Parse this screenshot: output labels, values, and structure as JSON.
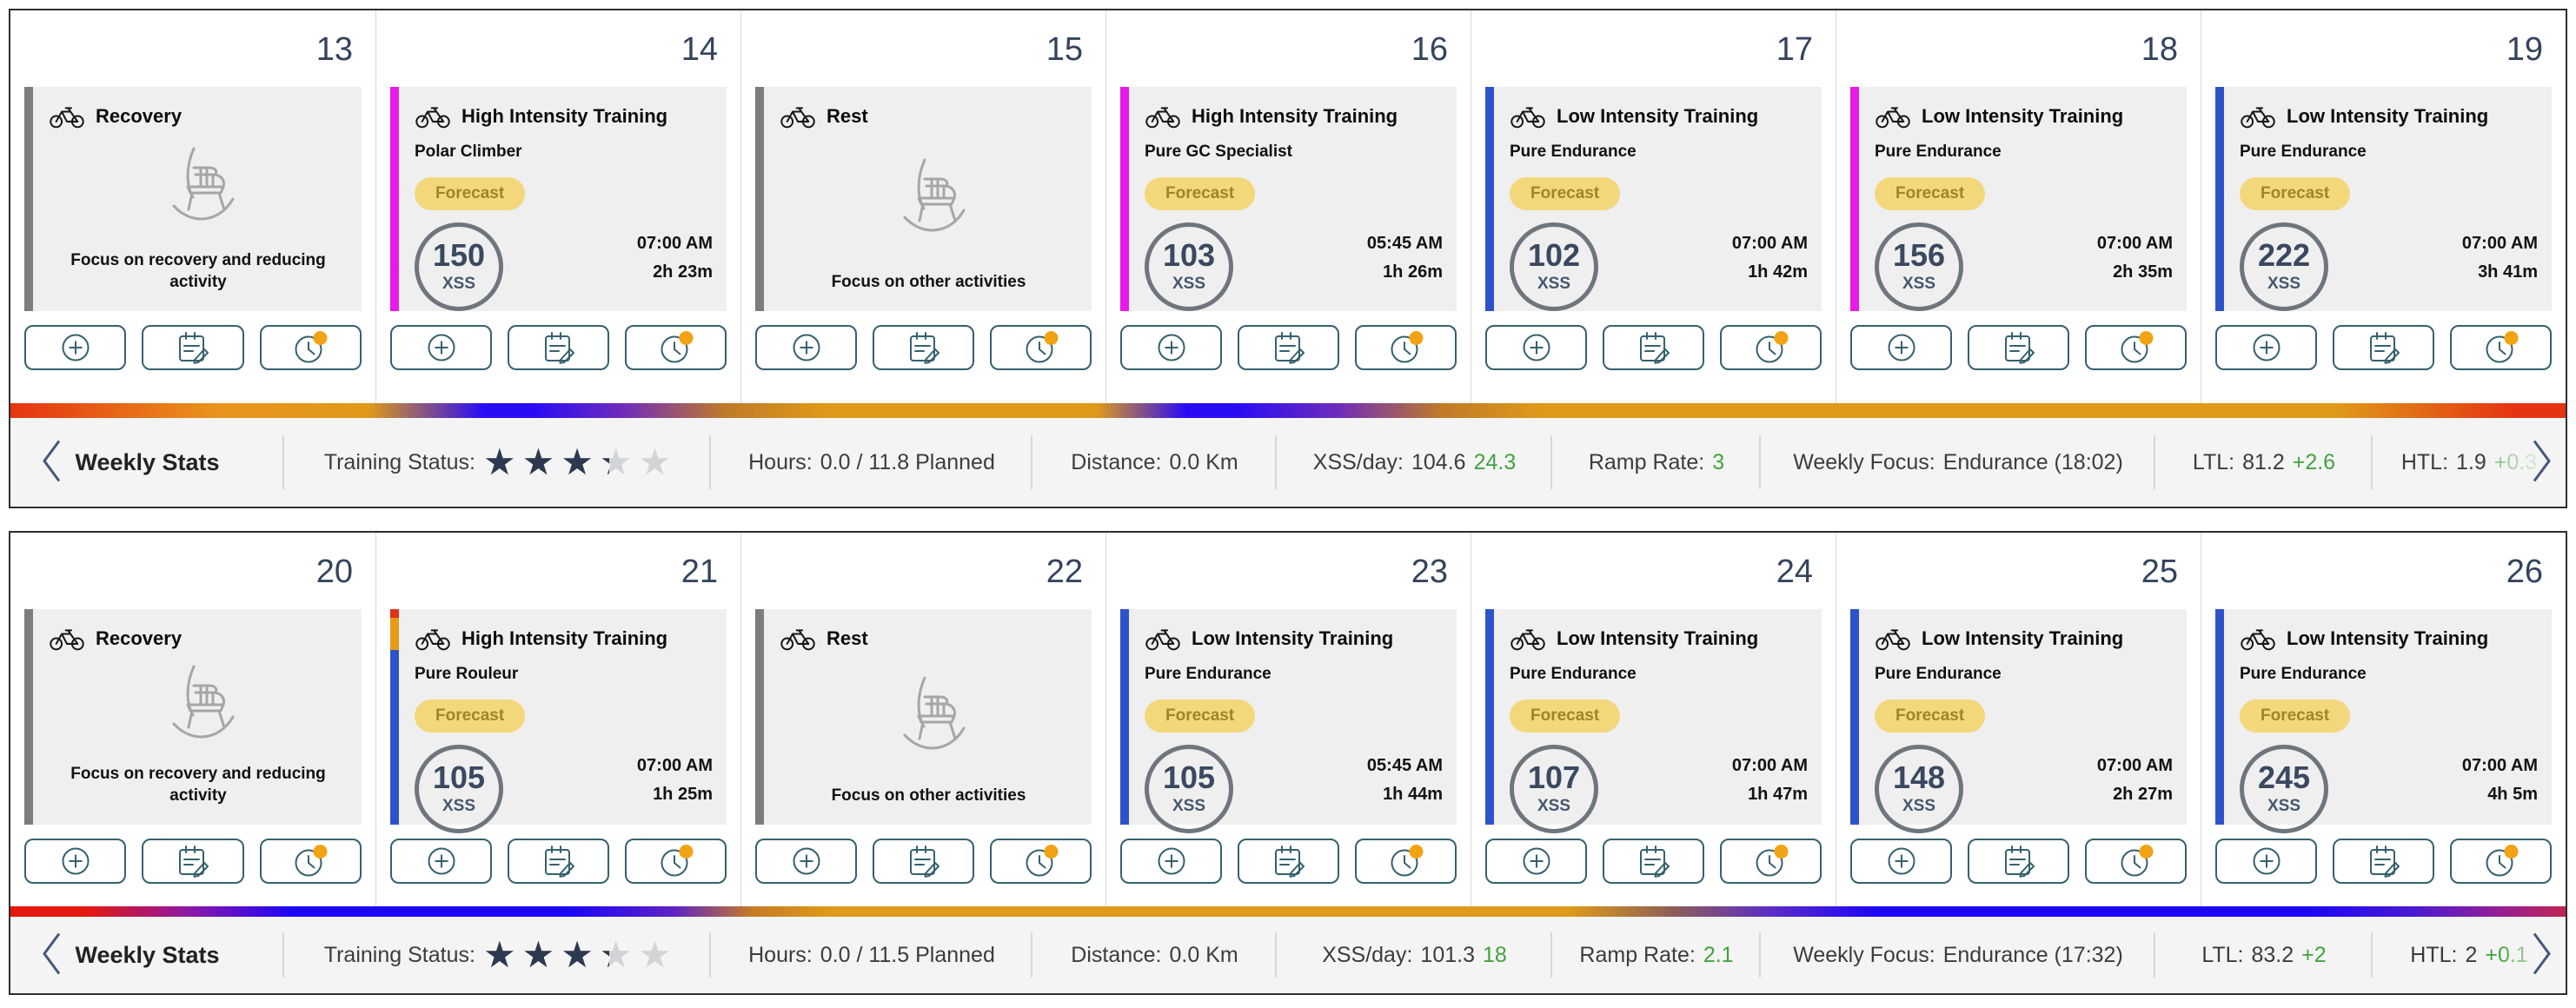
{
  "colors": {
    "green": "#43a23c",
    "star_filled": "#2c3950",
    "star_empty": "#d3d3d8",
    "badge_bg": "#f3d77b",
    "badge_text": "#a2832a",
    "button_border": "#35616e",
    "notification_dot": "#f2a313",
    "accent_gray": "#7d7d7d",
    "accent_magenta": "#e81ae8",
    "accent_blue": "#2d53cb"
  },
  "weeks": [
    {
      "days": [
        {
          "day": "13",
          "kind": "rest",
          "title": "Recovery",
          "message": "Focus on recovery and reducing activity",
          "accent": [
            {
              "c": "#7d7d7d",
              "pct": 100
            }
          ]
        },
        {
          "day": "14",
          "kind": "workout",
          "title": "High Intensity Training",
          "subtitle": "Polar Climber",
          "badge": "Forecast",
          "xss": "150",
          "xss_unit": "XSS",
          "time": "07:00 AM",
          "duration": "2h 23m",
          "accent": [
            {
              "c": "#e81ae8",
              "pct": 100
            }
          ]
        },
        {
          "day": "15",
          "kind": "rest",
          "title": "Rest",
          "message": "Focus on other activities",
          "accent": [
            {
              "c": "#7d7d7d",
              "pct": 100
            }
          ]
        },
        {
          "day": "16",
          "kind": "workout",
          "title": "High Intensity Training",
          "subtitle": "Pure GC Specialist",
          "badge": "Forecast",
          "xss": "103",
          "xss_unit": "XSS",
          "time": "05:45 AM",
          "duration": "1h 26m",
          "accent": [
            {
              "c": "#e81ae8",
              "pct": 100
            }
          ]
        },
        {
          "day": "17",
          "kind": "workout",
          "title": "Low Intensity Training",
          "subtitle": "Pure Endurance",
          "badge": "Forecast",
          "xss": "102",
          "xss_unit": "XSS",
          "time": "07:00 AM",
          "duration": "1h 42m",
          "accent": [
            {
              "c": "#2d53cb",
              "pct": 100
            }
          ]
        },
        {
          "day": "18",
          "kind": "workout",
          "title": "Low Intensity Training",
          "subtitle": "Pure Endurance",
          "badge": "Forecast",
          "xss": "156",
          "xss_unit": "XSS",
          "time": "07:00 AM",
          "duration": "2h 35m",
          "accent": [
            {
              "c": "#e81ae8",
              "pct": 100
            }
          ]
        },
        {
          "day": "19",
          "kind": "workout",
          "title": "Low Intensity Training",
          "subtitle": "Pure Endurance",
          "badge": "Forecast",
          "xss": "222",
          "xss_unit": "XSS",
          "time": "07:00 AM",
          "duration": "3h 41m",
          "accent": [
            {
              "c": "#2d53cb",
              "pct": 100
            }
          ]
        }
      ],
      "load_bar_gradient": [
        {
          "c": "#e63312",
          "p": 0
        },
        {
          "c": "#e8931c",
          "p": 8
        },
        {
          "c": "#df9a19",
          "p": 14
        },
        {
          "c": "#2a0cf4",
          "p": 18.5
        },
        {
          "c": "#2a0cf4",
          "p": 20.5
        },
        {
          "c": "#6f2cba",
          "p": 24
        },
        {
          "c": "#c07a28",
          "p": 28
        },
        {
          "c": "#df9a19",
          "p": 32
        },
        {
          "c": "#df9a19",
          "p": 42.5
        },
        {
          "c": "#2a0cf4",
          "p": 46
        },
        {
          "c": "#2a0cf4",
          "p": 48
        },
        {
          "c": "#6f2cba",
          "p": 52
        },
        {
          "c": "#c07a28",
          "p": 56
        },
        {
          "c": "#df9a19",
          "p": 60
        },
        {
          "c": "#df9a19",
          "p": 91
        },
        {
          "c": "#e63312",
          "p": 98
        },
        {
          "c": "#e63312",
          "p": 100
        }
      ],
      "stats": {
        "panel_label": "Weekly Stats",
        "training_status_label": "Training Status:",
        "stars": {
          "filled": 3,
          "partial": 0.3,
          "count": 5
        },
        "cells": [
          {
            "label": "Hours:",
            "value": "0.0 / 11.8 Planned"
          },
          {
            "label": "Distance:",
            "value": "0.0 Km"
          },
          {
            "label": "XSS/day:",
            "value": "104.6",
            "delta": "24.3"
          },
          {
            "label": "Ramp Rate:",
            "delta": "3"
          },
          {
            "label": "Weekly Focus:",
            "value": "Endurance (18:02)"
          },
          {
            "label": "LTL:",
            "value": "81.2",
            "delta": "+2.6"
          },
          {
            "label": "HTL:",
            "value": "1.9",
            "delta": "+0.3",
            "delta_faded": true
          }
        ]
      }
    },
    {
      "days": [
        {
          "day": "20",
          "kind": "rest",
          "title": "Recovery",
          "message": "Focus on recovery and reducing activity",
          "accent": [
            {
              "c": "#7d7d7d",
              "pct": 100
            }
          ]
        },
        {
          "day": "21",
          "kind": "workout",
          "title": "High Intensity Training",
          "subtitle": "Pure Rouleur",
          "badge": "Forecast",
          "xss": "105",
          "xss_unit": "XSS",
          "time": "07:00 AM",
          "duration": "1h 25m",
          "accent": [
            {
              "c": "#e0331a",
              "pct": 4
            },
            {
              "c": "#e89b18",
              "pct": 15
            },
            {
              "c": "#2d53cb",
              "pct": 81
            }
          ]
        },
        {
          "day": "22",
          "kind": "rest",
          "title": "Rest",
          "message": "Focus on other activities",
          "accent": [
            {
              "c": "#7d7d7d",
              "pct": 100
            }
          ]
        },
        {
          "day": "23",
          "kind": "workout",
          "title": "Low Intensity Training",
          "subtitle": "Pure Endurance",
          "badge": "Forecast",
          "xss": "105",
          "xss_unit": "XSS",
          "time": "05:45 AM",
          "duration": "1h 44m",
          "accent": [
            {
              "c": "#2d53cb",
              "pct": 100
            }
          ]
        },
        {
          "day": "24",
          "kind": "workout",
          "title": "Low Intensity Training",
          "subtitle": "Pure Endurance",
          "badge": "Forecast",
          "xss": "107",
          "xss_unit": "XSS",
          "time": "07:00 AM",
          "duration": "1h 47m",
          "accent": [
            {
              "c": "#2d53cb",
              "pct": 100
            }
          ]
        },
        {
          "day": "25",
          "kind": "workout",
          "title": "Low Intensity Training",
          "subtitle": "Pure Endurance",
          "badge": "Forecast",
          "xss": "148",
          "xss_unit": "XSS",
          "time": "07:00 AM",
          "duration": "2h 27m",
          "accent": [
            {
              "c": "#2d53cb",
              "pct": 100
            }
          ]
        },
        {
          "day": "26",
          "kind": "workout",
          "title": "Low Intensity Training",
          "subtitle": "Pure Endurance",
          "badge": "Forecast",
          "xss": "245",
          "xss_unit": "XSS",
          "time": "07:00 AM",
          "duration": "4h 5m",
          "accent": [
            {
              "c": "#2d53cb",
              "pct": 100
            }
          ]
        }
      ],
      "load_bar_gradient": [
        {
          "c": "#e31910",
          "p": 0
        },
        {
          "c": "#e31910",
          "p": 3
        },
        {
          "c": "#8c18a8",
          "p": 7
        },
        {
          "c": "#1d06f7",
          "p": 11
        },
        {
          "c": "#1d06f7",
          "p": 22
        },
        {
          "c": "#6023c3",
          "p": 26
        },
        {
          "c": "#c57a28",
          "p": 29
        },
        {
          "c": "#de9a1a",
          "p": 32
        },
        {
          "c": "#de9a1a",
          "p": 61
        },
        {
          "c": "#8f5f56",
          "p": 65
        },
        {
          "c": "#5b2bc9",
          "p": 69
        },
        {
          "c": "#1d06f7",
          "p": 73
        },
        {
          "c": "#1d06f7",
          "p": 90
        },
        {
          "c": "#4a19d2",
          "p": 94
        },
        {
          "c": "#8c1f9e",
          "p": 97
        },
        {
          "c": "#c22455",
          "p": 100
        }
      ],
      "stats": {
        "panel_label": "Weekly Stats",
        "training_status_label": "Training Status:",
        "stars": {
          "filled": 3,
          "partial": 0.3,
          "count": 5
        },
        "cells": [
          {
            "label": "Hours:",
            "value": "0.0 / 11.5 Planned"
          },
          {
            "label": "Distance:",
            "value": "0.0 Km"
          },
          {
            "label": "XSS/day:",
            "value": "101.3",
            "delta": "18"
          },
          {
            "label": "Ramp Rate:",
            "delta": "2.1"
          },
          {
            "label": "Weekly Focus:",
            "value": "Endurance (17:32)"
          },
          {
            "label": "LTL:",
            "value": "83.2",
            "delta": "+2"
          },
          {
            "label": "HTL:",
            "value": "2",
            "delta": "+0.1"
          }
        ]
      }
    }
  ]
}
